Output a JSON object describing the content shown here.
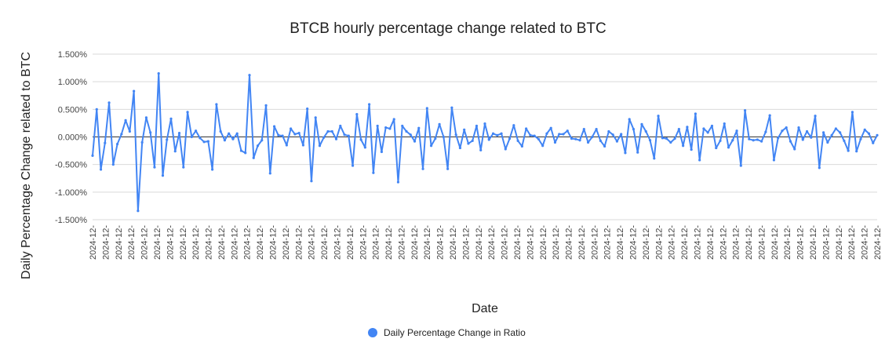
{
  "chart_data": {
    "type": "line",
    "title": "BTCB hourly percentage change related to BTC",
    "xlabel": "Date",
    "ylabel": "Daily Percentage Change related to BTC",
    "ylim": [
      -0.015,
      0.015
    ],
    "yticks": [
      0.015,
      0.01,
      0.005,
      0,
      -0.005,
      -0.01,
      -0.015
    ],
    "ytick_labels": [
      "1.500%",
      "1.000%",
      "0.500%",
      "0.000%",
      "-0.500%",
      "-1.000%",
      "-1.500%"
    ],
    "x_tick_label": "2024-12-",
    "x_tick_count": 62,
    "grid": true,
    "legend_position": "bottom",
    "series": [
      {
        "name": "Daily Percentage Change in Ratio",
        "color": "#4285f4",
        "values": [
          -0.0034,
          0.005,
          -0.0059,
          -0.0011,
          0.0062,
          -0.005,
          -0.0013,
          0.0005,
          0.003,
          0.001,
          0.0083,
          -0.0134,
          -0.001,
          0.0035,
          0.0008,
          -0.0055,
          0.0115,
          -0.007,
          -0.0005,
          0.0033,
          -0.0026,
          0.0007,
          -0.0055,
          0.0045,
          0.0,
          0.0011,
          -0.0002,
          -0.0009,
          -0.0008,
          -0.0059,
          0.0059,
          0.001,
          -0.0006,
          0.0006,
          -0.0004,
          0.0006,
          -0.0025,
          -0.0029,
          0.0112,
          -0.0038,
          -0.0016,
          -0.0006,
          0.0057,
          -0.0066,
          0.0019,
          0.0003,
          0.0002,
          -0.0015,
          0.0015,
          0.0005,
          0.0007,
          -0.0015,
          0.0051,
          -0.008,
          0.0035,
          -0.0016,
          -0.0001,
          0.001,
          0.001,
          -0.0004,
          0.002,
          0.0004,
          0.0002,
          -0.0052,
          0.0041,
          -0.0005,
          -0.0019,
          0.0059,
          -0.0065,
          0.002,
          -0.0027,
          0.0017,
          0.0015,
          0.0032,
          -0.0082,
          0.002,
          0.001,
          0.0004,
          -0.0008,
          0.0016,
          -0.0058,
          0.0052,
          -0.0016,
          -0.0003,
          0.0023,
          0.0,
          -0.0058,
          0.0053,
          0.0004,
          -0.002,
          0.0013,
          -0.0012,
          -0.0007,
          0.002,
          -0.0024,
          0.0024,
          -0.0005,
          0.0006,
          0.0003,
          0.0006,
          -0.0022,
          -0.0003,
          0.0021,
          -0.0007,
          -0.0017,
          0.0015,
          0.0003,
          0.0002,
          -0.0004,
          -0.0016,
          0.0006,
          0.0016,
          -0.001,
          0.0005,
          0.0005,
          0.0011,
          -0.0003,
          -0.0004,
          -0.0006,
          0.0014,
          -0.001,
          0.0,
          0.0014,
          -0.0007,
          -0.0017,
          0.001,
          0.0004,
          -0.0008,
          0.0005,
          -0.0029,
          0.0032,
          0.0014,
          -0.0028,
          0.0023,
          0.001,
          -0.0006,
          -0.0039,
          0.0038,
          -0.0002,
          -0.0003,
          -0.001,
          -0.0003,
          0.0014,
          -0.0016,
          0.0018,
          -0.0023,
          0.0042,
          -0.0042,
          0.0015,
          0.0008,
          0.002,
          -0.002,
          -0.0007,
          0.0024,
          -0.0019,
          -0.0006,
          0.0011,
          -0.0052,
          0.0048,
          -0.0004,
          -0.0006,
          -0.0005,
          -0.0008,
          0.0009,
          0.0039,
          -0.0042,
          -0.0002,
          0.0011,
          0.0017,
          -0.0008,
          -0.0022,
          0.0017,
          -0.0005,
          0.001,
          -0.0001,
          0.0038,
          -0.0056,
          0.0008,
          -0.001,
          0.0003,
          0.0015,
          0.0008,
          -0.0007,
          -0.0025,
          0.0045,
          -0.0026,
          -0.0004,
          0.0013,
          0.0006,
          -0.0011,
          0.0003
        ]
      }
    ]
  }
}
